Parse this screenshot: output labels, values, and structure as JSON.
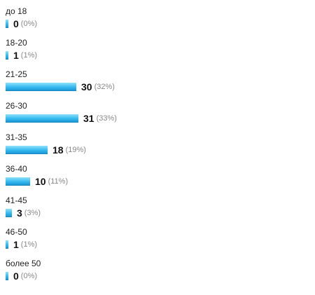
{
  "poll": {
    "max_share": 0.33,
    "options": [
      {
        "label": "до 18",
        "count": "0",
        "percent": "(0%)",
        "share": 0.0
      },
      {
        "label": "18-20",
        "count": "1",
        "percent": "(1%)",
        "share": 0.01
      },
      {
        "label": "21-25",
        "count": "30",
        "percent": "(32%)",
        "share": 0.32
      },
      {
        "label": "26-30",
        "count": "31",
        "percent": "(33%)",
        "share": 0.33
      },
      {
        "label": "31-35",
        "count": "18",
        "percent": "(19%)",
        "share": 0.19
      },
      {
        "label": "36-40",
        "count": "10",
        "percent": "(11%)",
        "share": 0.11
      },
      {
        "label": "41-45",
        "count": "3",
        "percent": "(3%)",
        "share": 0.03
      },
      {
        "label": "46-50",
        "count": "1",
        "percent": "(1%)",
        "share": 0.01
      },
      {
        "label": "более 50",
        "count": "0",
        "percent": "(0%)",
        "share": 0.0
      }
    ]
  },
  "colors": {
    "bar_light": "#8fe2fb",
    "bar_dark": "#1a97d6",
    "count_text": "#111111",
    "percent_text": "#888888"
  }
}
